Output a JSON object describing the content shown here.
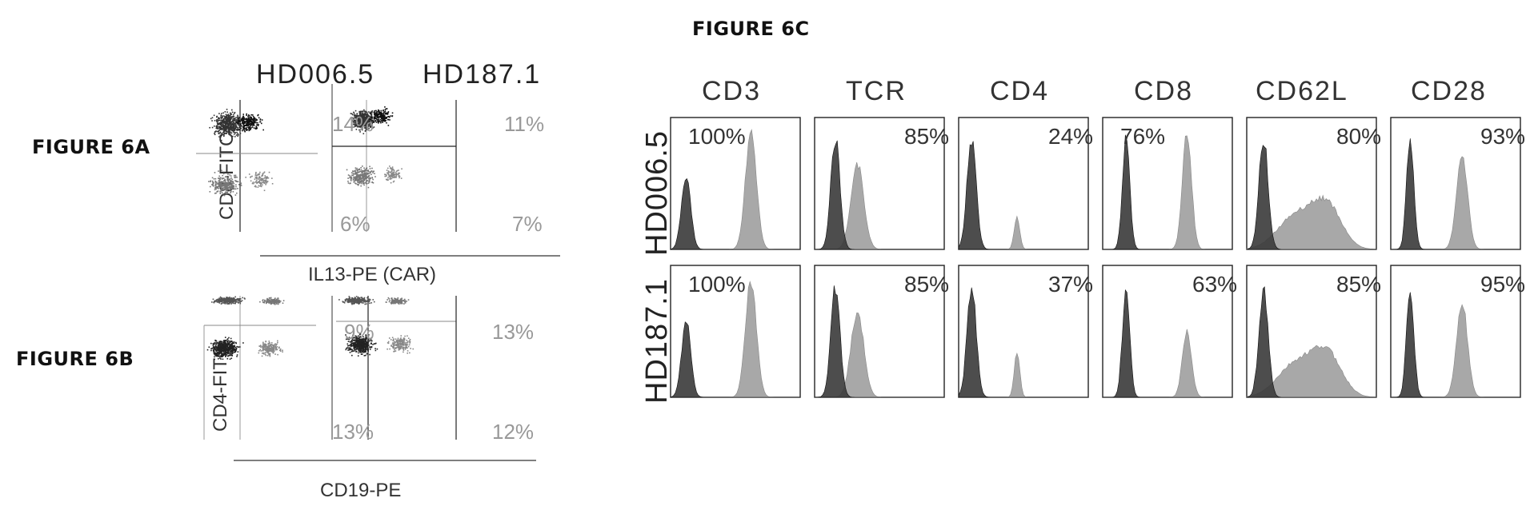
{
  "figure_6a": {
    "label": "FIGURE 6A",
    "columns": [
      "HD006.5",
      "HD187.1"
    ],
    "y_axis": "CD8-FITC",
    "x_axis": "IL13-PE (CAR)",
    "panels": [
      {
        "upper_right": "14%",
        "lower_right": "6%"
      },
      {
        "upper_right": "11%",
        "lower_right": "7%"
      }
    ]
  },
  "figure_6b": {
    "label": "FIGURE 6B",
    "y_axis": "CD4-FITC",
    "x_axis": "CD19-PE",
    "panels": [
      {
        "upper_right": "9%",
        "lower_right": "13%"
      },
      {
        "upper_right": "13%",
        "lower_right": "12%"
      }
    ]
  },
  "figure_6c": {
    "label": "FIGURE 6C",
    "markers": [
      "CD3",
      "TCR",
      "CD4",
      "CD8",
      "CD62L",
      "CD28"
    ],
    "rows": [
      {
        "name": "HD006.5",
        "percents": [
          "100%",
          "85%",
          "24%",
          "76%",
          "80%",
          "93%"
        ]
      },
      {
        "name": "HD187.1",
        "percents": [
          "100%",
          "85%",
          "37%",
          "63%",
          "85%",
          "95%"
        ]
      }
    ]
  }
}
